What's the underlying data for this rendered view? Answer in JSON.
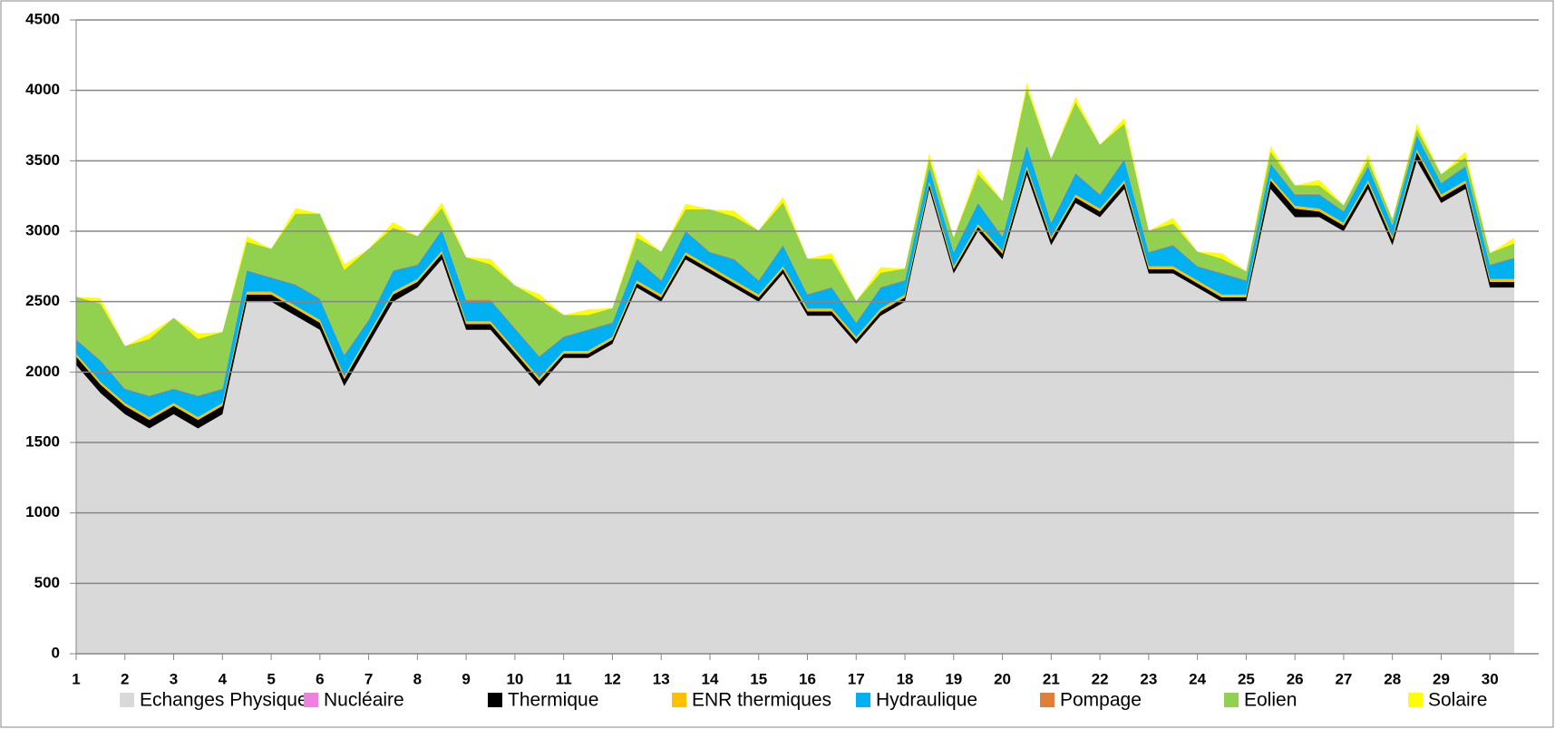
{
  "chart_data": {
    "type": "stacked-area",
    "x": [
      1,
      1.5,
      2,
      2.5,
      3,
      3.5,
      4,
      4.5,
      5,
      5.5,
      6,
      6.5,
      7,
      7.5,
      8,
      8.5,
      9,
      9.5,
      10,
      10.5,
      11,
      11.5,
      12,
      12.5,
      13,
      13.5,
      14,
      14.5,
      15,
      15.5,
      16,
      16.5,
      17,
      17.5,
      18,
      18.5,
      19,
      19.5,
      20,
      20.5,
      21,
      21.5,
      22,
      22.5,
      23,
      23.5,
      24,
      24.5,
      25,
      25.5,
      26,
      26.5,
      27,
      27.5,
      28,
      28.5,
      29,
      29.5,
      30,
      30.5
    ],
    "xlim": [
      1,
      31
    ],
    "xticks": [
      1,
      2,
      3,
      4,
      5,
      6,
      7,
      8,
      9,
      10,
      11,
      12,
      13,
      14,
      15,
      16,
      17,
      18,
      19,
      20,
      21,
      22,
      23,
      24,
      25,
      26,
      27,
      28,
      29,
      30
    ],
    "ylim": [
      0,
      4500
    ],
    "yticks": [
      0,
      500,
      1000,
      1500,
      2000,
      2500,
      3000,
      3500,
      4000,
      4500
    ],
    "grid": true,
    "legend": "bottom",
    "series": [
      {
        "name": "Echanges Physiques",
        "color": "#d9d9d9",
        "values": [
          2050,
          1850,
          1700,
          1600,
          1700,
          1600,
          1700,
          2500,
          2500,
          2400,
          2300,
          1900,
          2200,
          2500,
          2600,
          2800,
          2300,
          2300,
          2100,
          1900,
          2100,
          2100,
          2200,
          2600,
          2500,
          2800,
          2700,
          2600,
          2500,
          2700,
          2400,
          2400,
          2200,
          2400,
          2500,
          3300,
          2700,
          3000,
          2800,
          3400,
          2900,
          3200,
          3100,
          3300,
          2700,
          2700,
          2600,
          2500,
          2500,
          3300,
          3100,
          3100,
          3000,
          3300,
          2900,
          3500,
          3200,
          3300,
          2600,
          2600
        ]
      },
      {
        "name": "Nucléaire",
        "color": "#f07fe0",
        "values": [
          0,
          0,
          0,
          0,
          0,
          0,
          0,
          0,
          0,
          0,
          0,
          0,
          0,
          0,
          0,
          0,
          0,
          0,
          0,
          0,
          0,
          0,
          0,
          0,
          0,
          0,
          0,
          0,
          0,
          0,
          0,
          0,
          0,
          0,
          0,
          0,
          0,
          0,
          0,
          0,
          0,
          0,
          0,
          0,
          0,
          0,
          0,
          0,
          0,
          0,
          0,
          0,
          0,
          0,
          0,
          0,
          0,
          0,
          0,
          0
        ]
      },
      {
        "name": "Thermique",
        "color": "#000000",
        "values": [
          60,
          60,
          60,
          60,
          60,
          60,
          60,
          50,
          50,
          50,
          50,
          50,
          50,
          50,
          40,
          40,
          40,
          40,
          40,
          40,
          30,
          30,
          30,
          30,
          30,
          30,
          30,
          30,
          30,
          30,
          30,
          30,
          30,
          30,
          30,
          30,
          30,
          30,
          40,
          40,
          40,
          40,
          40,
          40,
          30,
          30,
          30,
          30,
          30,
          60,
          60,
          40,
          40,
          40,
          40,
          60,
          40,
          40,
          40,
          40
        ]
      },
      {
        "name": "ENR thermiques",
        "color": "#ffc000",
        "values": [
          20,
          20,
          20,
          20,
          20,
          20,
          20,
          20,
          20,
          20,
          20,
          20,
          20,
          20,
          20,
          20,
          20,
          20,
          20,
          20,
          20,
          20,
          20,
          20,
          20,
          20,
          20,
          20,
          20,
          20,
          20,
          20,
          20,
          20,
          20,
          20,
          20,
          20,
          20,
          20,
          20,
          20,
          20,
          20,
          20,
          20,
          20,
          20,
          20,
          20,
          20,
          20,
          20,
          20,
          20,
          20,
          20,
          20,
          20,
          20
        ]
      },
      {
        "name": "Hydraulique",
        "color": "#00b0f0",
        "values": [
          100,
          150,
          100,
          150,
          100,
          150,
          100,
          150,
          100,
          150,
          150,
          150,
          100,
          150,
          100,
          150,
          150,
          150,
          150,
          150,
          100,
          150,
          100,
          150,
          100,
          150,
          100,
          150,
          100,
          150,
          100,
          150,
          100,
          150,
          100,
          100,
          100,
          150,
          100,
          150,
          100,
          150,
          100,
          150,
          100,
          150,
          100,
          150,
          100,
          100,
          80,
          100,
          80,
          100,
          80,
          100,
          80,
          100,
          100,
          150
        ]
      },
      {
        "name": "Pompage",
        "color": "#e07f3a",
        "values": [
          5,
          5,
          5,
          5,
          5,
          5,
          5,
          5,
          5,
          5,
          5,
          5,
          5,
          5,
          5,
          5,
          5,
          5,
          5,
          5,
          5,
          5,
          5,
          5,
          5,
          5,
          5,
          5,
          5,
          5,
          5,
          5,
          5,
          5,
          5,
          5,
          5,
          5,
          5,
          5,
          5,
          5,
          5,
          5,
          5,
          5,
          5,
          5,
          5,
          5,
          5,
          5,
          5,
          5,
          5,
          5,
          5,
          5,
          5,
          5
        ]
      },
      {
        "name": "Eolien",
        "color": "#92d050",
        "values": [
          300,
          400,
          300,
          400,
          500,
          400,
          400,
          200,
          200,
          500,
          600,
          600,
          500,
          300,
          200,
          150,
          300,
          250,
          300,
          400,
          150,
          100,
          100,
          150,
          200,
          150,
          300,
          300,
          350,
          300,
          250,
          200,
          150,
          100,
          80,
          60,
          100,
          200,
          250,
          400,
          450,
          500,
          350,
          250,
          150,
          150,
          100,
          100,
          60,
          80,
          60,
          60,
          40,
          40,
          40,
          40,
          60,
          60,
          80,
          100
        ]
      },
      {
        "name": "Solaire",
        "color": "#ffff00",
        "values": [
          0,
          40,
          0,
          40,
          0,
          40,
          0,
          40,
          0,
          40,
          0,
          40,
          0,
          40,
          0,
          40,
          0,
          40,
          0,
          40,
          0,
          40,
          0,
          40,
          0,
          40,
          0,
          40,
          0,
          40,
          0,
          40,
          0,
          40,
          0,
          40,
          0,
          40,
          0,
          40,
          0,
          40,
          0,
          40,
          0,
          40,
          0,
          40,
          0,
          40,
          0,
          40,
          0,
          40,
          0,
          40,
          0,
          40,
          0,
          40
        ]
      }
    ]
  }
}
